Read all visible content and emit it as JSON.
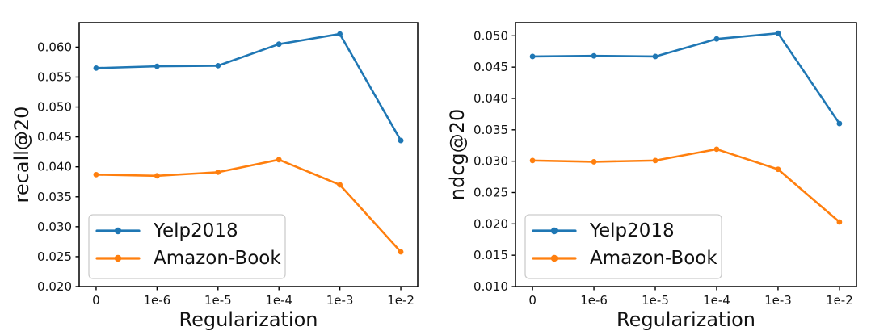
{
  "figure": {
    "background": "#ffffff",
    "text_color": "#111111",
    "spine_color": "#000000",
    "legend_border_color": "#cccccc",
    "legend_background": "#ffffff"
  },
  "chart_data": [
    {
      "type": "line",
      "title": "",
      "xlabel": "Regularization",
      "ylabel": "recall@20",
      "categories": [
        "0",
        "1e-6",
        "1e-5",
        "1e-4",
        "1e-3",
        "1e-2"
      ],
      "series": [
        {
          "name": "Yelp2018",
          "color": "#1f77b4",
          "marker": "circle-marker",
          "values": [
            0.0565,
            0.0568,
            0.0569,
            0.0605,
            0.0622,
            0.0444
          ]
        },
        {
          "name": "Amazon-Book",
          "color": "#ff7f0e",
          "marker": "circle-marker",
          "values": [
            0.0387,
            0.0385,
            0.0391,
            0.0412,
            0.037,
            0.0258
          ]
        }
      ],
      "ylim": [
        0.02,
        0.0641
      ],
      "yticks": [
        0.02,
        0.025,
        0.03,
        0.035,
        0.04,
        0.045,
        0.05,
        0.055,
        0.06
      ],
      "ytick_decimals": 3,
      "legend_position": "lower-left",
      "grid": false
    },
    {
      "type": "line",
      "title": "",
      "xlabel": "Regularization",
      "ylabel": "ndcg@20",
      "categories": [
        "0",
        "1e-6",
        "1e-5",
        "1e-4",
        "1e-3",
        "1e-2"
      ],
      "series": [
        {
          "name": "Yelp2018",
          "color": "#1f77b4",
          "marker": "circle-marker",
          "values": [
            0.0467,
            0.0468,
            0.0467,
            0.0495,
            0.0504,
            0.036
          ]
        },
        {
          "name": "Amazon-Book",
          "color": "#ff7f0e",
          "marker": "circle-marker",
          "values": [
            0.0301,
            0.0299,
            0.0301,
            0.0319,
            0.0287,
            0.0203
          ]
        }
      ],
      "ylim": [
        0.01,
        0.0521
      ],
      "yticks": [
        0.01,
        0.015,
        0.02,
        0.025,
        0.03,
        0.035,
        0.04,
        0.045,
        0.05
      ],
      "ytick_decimals": 3,
      "legend_position": "lower-left",
      "grid": false
    }
  ]
}
